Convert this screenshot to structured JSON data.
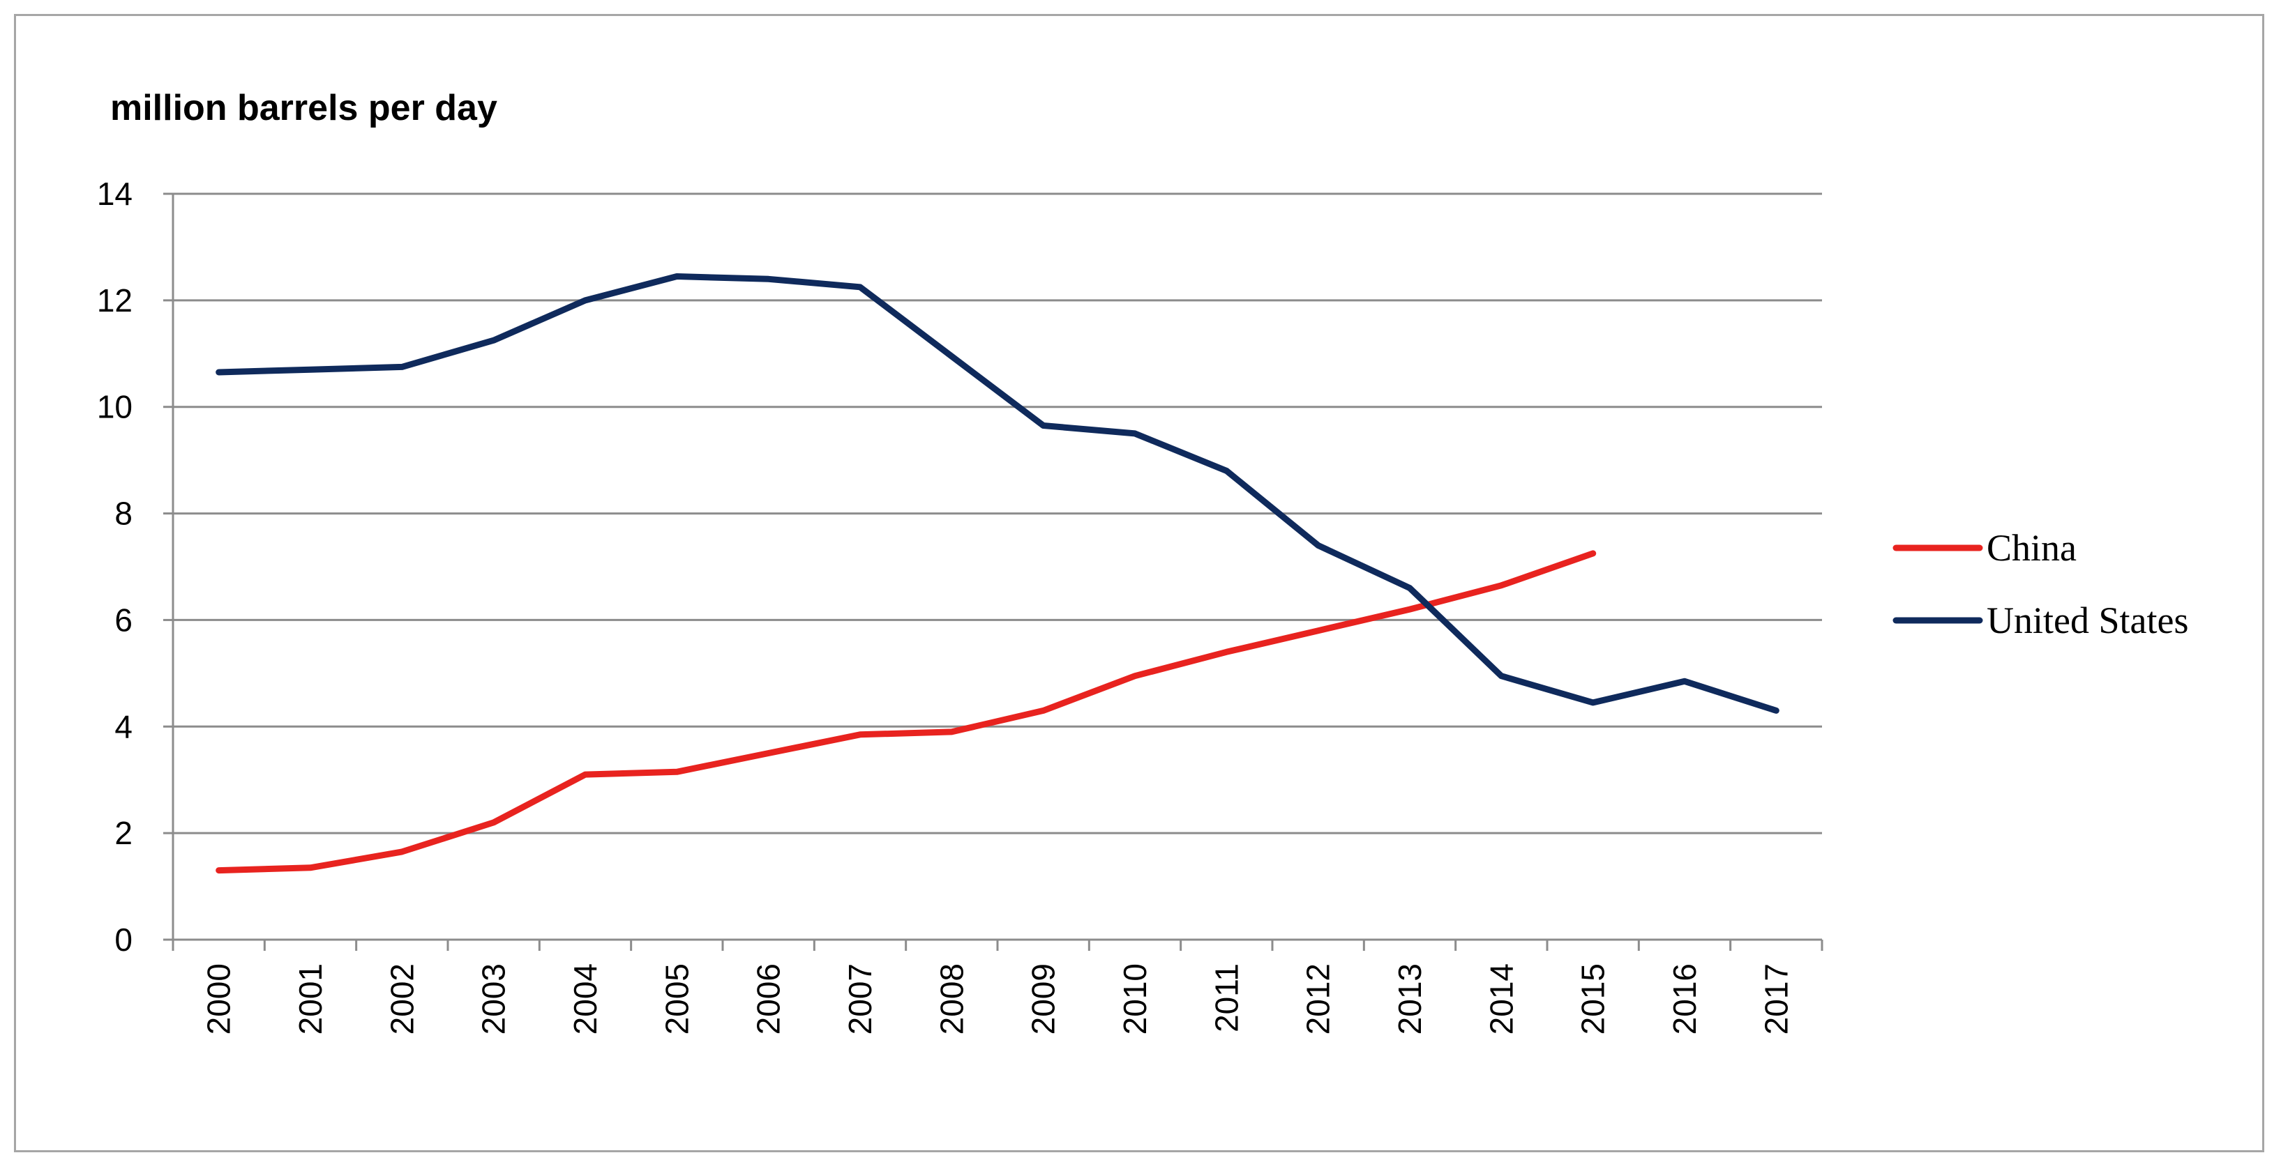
{
  "chart_data": {
    "type": "line",
    "ylabel": "million barrels per day",
    "xlabel": "",
    "title": "",
    "x": [
      "2000",
      "2001",
      "2002",
      "2003",
      "2004",
      "2005",
      "2006",
      "2007",
      "2008",
      "2009",
      "2010",
      "2011",
      "2012",
      "2013",
      "2014",
      "2015",
      "2016",
      "2017"
    ],
    "ylim": [
      0,
      14
    ],
    "yticks": [
      0,
      2,
      4,
      6,
      8,
      10,
      12,
      14
    ],
    "grid": true,
    "legend_position": "right",
    "series": [
      {
        "name": "China",
        "color": "#e8231f",
        "values": [
          1.3,
          1.35,
          1.65,
          2.2,
          3.1,
          3.15,
          3.5,
          3.85,
          3.9,
          4.3,
          4.95,
          5.4,
          5.8,
          6.2,
          6.65,
          7.25,
          null,
          null
        ]
      },
      {
        "name": "United States",
        "color": "#0f2a5c",
        "values": [
          10.65,
          10.7,
          10.75,
          11.25,
          12.0,
          12.45,
          12.4,
          12.25,
          10.95,
          9.65,
          9.5,
          8.8,
          7.4,
          6.6,
          4.95,
          4.45,
          4.85,
          4.3
        ]
      }
    ]
  }
}
